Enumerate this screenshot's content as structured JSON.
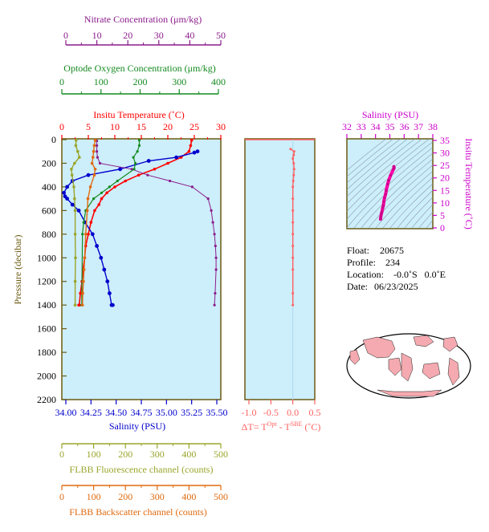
{
  "colors": {
    "nitrate": "#8b1c8b",
    "oxygen": "#138a1e",
    "temperature": "#ff0000",
    "salinity": "#0000cc",
    "fluor": "#9aa52a",
    "backscatter": "#e06a10",
    "dt": "#ff6060",
    "magenta": "#cc00cc",
    "panel_bg": "#cdeefb",
    "frame": "#6b5a10"
  },
  "axes": {
    "nitrate": {
      "label": "Nitrate Concentration (μm/kg)",
      "ticks": [
        "0",
        "10",
        "20",
        "30",
        "40",
        "50"
      ]
    },
    "oxygen": {
      "label": "Optode Oxygen Concentration (μm/kg)",
      "ticks": [
        "0",
        "100",
        "200",
        "300",
        "400"
      ]
    },
    "temperature": {
      "label": "Insitu Temperature (˚C)",
      "ticks": [
        "0",
        "5",
        "10",
        "15",
        "20",
        "25",
        "30"
      ]
    },
    "pressure": {
      "label": "Pressure (decibar)",
      "ticks": [
        "0",
        "200",
        "400",
        "600",
        "800",
        "1000",
        "1200",
        "1400",
        "1600",
        "1800",
        "2000",
        "2200"
      ]
    },
    "salinity": {
      "label": "Salinity (PSU)",
      "ticks": [
        "34.00",
        "34.25",
        "34.50",
        "34.75",
        "35.00",
        "35.25",
        "35.50"
      ]
    },
    "fluor": {
      "label": "FLBB Fluorescence channel (counts)",
      "ticks": [
        "0",
        "100",
        "200",
        "300",
        "400",
        "500"
      ]
    },
    "backscatter": {
      "label": "FLBB Backscatter channel (counts)",
      "ticks": [
        "0",
        "100",
        "200",
        "300",
        "400",
        "500"
      ]
    },
    "dt": {
      "label_main": "ΔT= T",
      "label_sup1": "Opt",
      "label_mid": " - T",
      "label_sup2": "SBE",
      "label_end": " (˚C)",
      "ticks": [
        "-1.0",
        "-0.5",
        "0.0",
        "0.5"
      ]
    },
    "ts_salinity": {
      "label": "Salinity (PSU)",
      "ticks": [
        "32",
        "33",
        "34",
        "35",
        "36",
        "37",
        "38"
      ]
    },
    "ts_temperature": {
      "label": "Insitu Temperature (˚C)",
      "ticks": [
        "0",
        "5",
        "10",
        "15",
        "20",
        "25",
        "30",
        "35"
      ]
    }
  },
  "info": {
    "float_label": "Float:",
    "float_value": "20675",
    "profile_label": "Profile:",
    "profile_value": "234",
    "location_label": "Location:",
    "location_value": "-0.0˚S   0.0˚E",
    "date_label": "Date:",
    "date_value": "06/23/2025"
  },
  "chart_data": [
    {
      "type": "line",
      "y_axis": "pressure (decibar)",
      "ylim": [
        2200,
        0
      ],
      "series": [
        {
          "key": "temperature",
          "units": "˚C",
          "xlim": [
            0,
            30
          ],
          "x": [
            24.5,
            24.3,
            24.0,
            22.5,
            20.0,
            17.5,
            14.5,
            12.0,
            10.0,
            8.5,
            7.5,
            7.0,
            6.2,
            5.5,
            5.0,
            4.5,
            4.3,
            4.0,
            3.8,
            3.5,
            3.3,
            3.2
          ],
          "y": [
            5,
            50,
            100,
            150,
            200,
            250,
            300,
            350,
            400,
            450,
            500,
            550,
            600,
            700,
            800,
            900,
            1000,
            1100,
            1200,
            1300,
            1400,
            1400
          ]
        },
        {
          "key": "salinity",
          "units": "PSU",
          "xlim": [
            34.0,
            35.5
          ],
          "x": [
            35.28,
            35.25,
            35.08,
            34.82,
            34.55,
            34.25,
            34.1,
            34.05,
            34.02,
            34.03,
            34.05,
            34.1,
            34.16,
            34.22,
            34.29,
            34.33,
            34.37,
            34.4,
            34.43,
            34.45,
            34.47,
            34.48
          ],
          "y": [
            100,
            110,
            150,
            180,
            250,
            300,
            350,
            400,
            450,
            480,
            500,
            550,
            600,
            700,
            800,
            900,
            1000,
            1100,
            1200,
            1300,
            1400,
            1400
          ]
        },
        {
          "key": "nitrate",
          "units": "μm/kg",
          "xlim": [
            0,
            50
          ],
          "x": [
            11.0,
            11.0,
            11.0,
            11.2,
            12.0,
            22.0,
            27.0,
            34.0,
            41.0,
            46.0,
            47.0,
            47.5,
            48.0,
            48.3,
            48.5,
            48.5,
            48.2,
            48.0
          ],
          "y": [
            10,
            50,
            100,
            150,
            200,
            250,
            300,
            350,
            400,
            500,
            600,
            700,
            800,
            900,
            1000,
            1100,
            1300,
            1400
          ]
        },
        {
          "key": "oxygen",
          "units": "μm/kg",
          "xlim": [
            0,
            400
          ],
          "x": [
            195,
            195,
            190,
            180,
            185,
            182,
            140,
            120,
            100,
            80,
            60,
            55,
            52,
            50
          ],
          "y": [
            5,
            50,
            100,
            150,
            200,
            250,
            350,
            400,
            450,
            500,
            600,
            700,
            800,
            1400
          ]
        },
        {
          "key": "fluor",
          "units": "counts",
          "xlim": [
            0,
            500
          ],
          "x": [
            45,
            44,
            50,
            55,
            40,
            30,
            32,
            38,
            40,
            42,
            42,
            43,
            42,
            42
          ],
          "y": [
            5,
            50,
            100,
            150,
            200,
            250,
            300,
            400,
            500,
            600,
            800,
            1000,
            1200,
            1400
          ]
        },
        {
          "key": "backscatter",
          "units": "counts",
          "xlim": [
            0,
            500
          ],
          "x": [
            105,
            102,
            100,
            98,
            95,
            105,
            102,
            90,
            82,
            80,
            75,
            72,
            70,
            68,
            66,
            65
          ],
          "y": [
            5,
            50,
            100,
            150,
            200,
            250,
            300,
            400,
            500,
            600,
            800,
            1000,
            1100,
            1200,
            1300,
            1400
          ]
        }
      ]
    },
    {
      "type": "line",
      "key": "dt",
      "xlim": [
        -1.0,
        0.5
      ],
      "ylim": [
        2200,
        0
      ],
      "x": [
        -0.05,
        0.03,
        0.02,
        0.0,
        0.02,
        0.03,
        0.02,
        0.01,
        0.0,
        0.0,
        0.0,
        0.0,
        0.0,
        0.0,
        0.0,
        0.0,
        0.0,
        0.0
      ],
      "y": [
        80,
        100,
        130,
        160,
        200,
        250,
        300,
        350,
        400,
        500,
        600,
        700,
        800,
        900,
        1000,
        1100,
        1300,
        1400
      ]
    },
    {
      "type": "line",
      "key": "ts",
      "xlim": [
        32,
        38
      ],
      "ylim": [
        0,
        35
      ],
      "x": [
        35.28,
        35.3,
        35.25,
        35.05,
        34.92,
        34.85,
        34.75,
        34.7,
        34.63,
        34.58,
        34.55,
        34.5,
        34.45,
        34.4,
        34.37,
        34.35
      ],
      "y": [
        24.5,
        24.0,
        23.5,
        21.0,
        19.0,
        17.5,
        15.0,
        13.5,
        12.0,
        10.5,
        9.0,
        8.0,
        6.5,
        5.5,
        4.5,
        3.5
      ]
    }
  ]
}
